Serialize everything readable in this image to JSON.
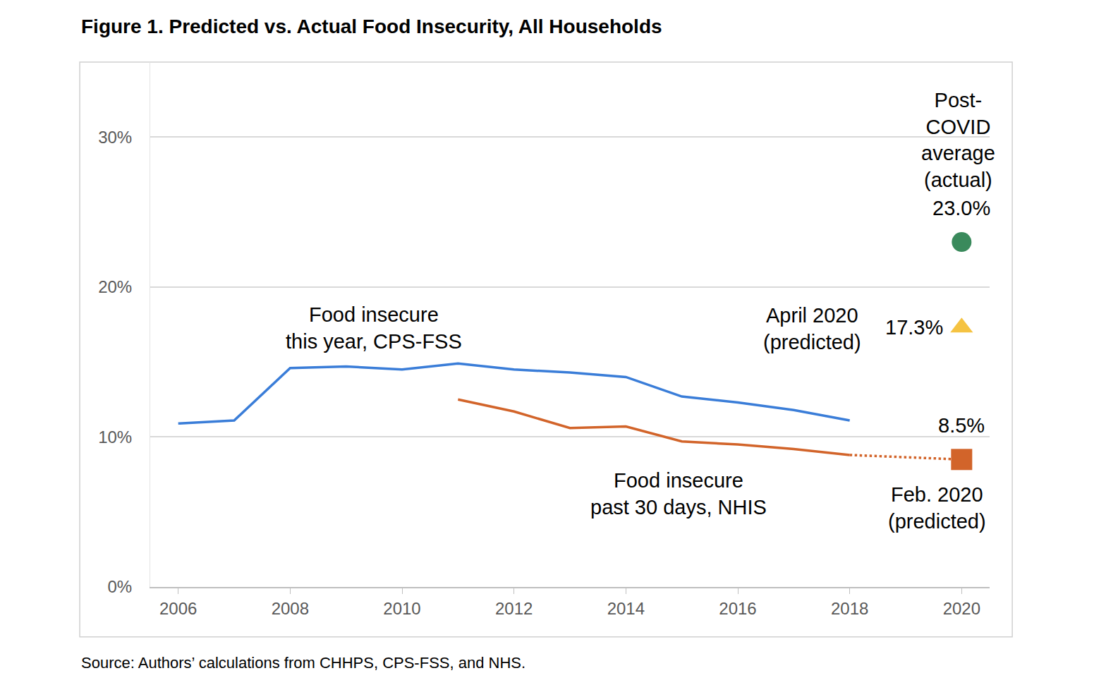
{
  "chart_data": {
    "type": "line",
    "title": "Figure 1. Predicted vs. Actual Food Insecurity, All Households",
    "source": "Source: Authors’ calculations from CHHPS, CPS-FSS, and NHS.",
    "xlim": [
      2005.5,
      2020.5
    ],
    "xticks": [
      2006,
      2008,
      2010,
      2012,
      2014,
      2016,
      2018,
      2020
    ],
    "ylim": [
      0,
      35
    ],
    "yticks": [
      {
        "value": 0,
        "label": "0%"
      },
      {
        "value": 10,
        "label": "10%"
      },
      {
        "value": 20,
        "label": "20%"
      },
      {
        "value": 30,
        "label": "30%"
      }
    ],
    "grid": true,
    "data_labels": true,
    "series": [
      {
        "name": "Food insecure\nthis year, CPS-FSS",
        "type": "line",
        "color": "#3a7dd8",
        "x": [
          2006,
          2007,
          2008,
          2009,
          2010,
          2011,
          2012,
          2013,
          2014,
          2015,
          2016,
          2017,
          2018
        ],
        "values": [
          10.9,
          11.1,
          14.6,
          14.7,
          14.5,
          14.9,
          14.5,
          14.3,
          14.0,
          12.7,
          12.3,
          11.8,
          11.1
        ]
      },
      {
        "name": "Food insecure\npast 30 days, NHIS",
        "type": "line",
        "color": "#d2642a",
        "x": [
          2011,
          2012,
          2013,
          2014,
          2015,
          2016,
          2017,
          2018
        ],
        "values": [
          12.5,
          11.7,
          10.6,
          10.7,
          9.7,
          9.5,
          9.2,
          8.8
        ]
      },
      {
        "name": "Post-\nCOVID\naverage\n(actual)",
        "type": "scatter",
        "color": "#3a8a5c",
        "marker": "circle",
        "x": [
          2020
        ],
        "values": [
          23.0
        ],
        "value_labels": [
          "23.0%"
        ]
      },
      {
        "name": "April 2020\n(predicted)",
        "type": "scatter",
        "color": "#f5c342",
        "marker": "triangle",
        "x": [
          2020
        ],
        "values": [
          17.3
        ],
        "value_labels": [
          "17.3%"
        ]
      },
      {
        "name": "Feb. 2020\n(predicted)",
        "type": "scatter",
        "color": "#d2642a",
        "marker": "square",
        "line_style": "dotted",
        "x": [
          2020
        ],
        "values": [
          8.5
        ],
        "value_labels": [
          "8.5%"
        ]
      }
    ]
  }
}
